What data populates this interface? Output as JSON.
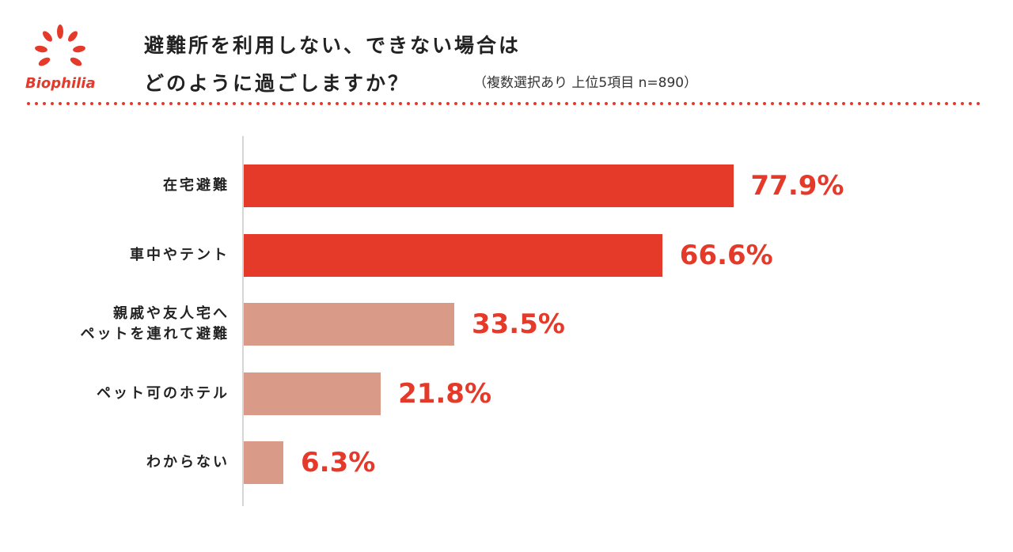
{
  "brand": "Biophilia",
  "chart_data": {
    "type": "bar",
    "orientation": "horizontal",
    "title": [
      "避難所を利用しない、できない場合は",
      "どのように過ごしますか？"
    ],
    "subtitle": "（複数選択あり 上位5項目 n=890）",
    "categories": [
      "在宅避難",
      "車中やテント",
      "親戚や友人宅へ\nペットを連れて避難",
      "ペット可のホテル",
      "わからない"
    ],
    "values": [
      77.9,
      66.6,
      33.5,
      21.8,
      6.3
    ],
    "value_labels": [
      "77.9%",
      "66.6%",
      "33.5%",
      "21.8%",
      "6.3%"
    ],
    "colors": [
      "#e5392a",
      "#e5392a",
      "#d99a87",
      "#d99a87",
      "#d99a87"
    ],
    "label_color": "#e5392a"
  }
}
